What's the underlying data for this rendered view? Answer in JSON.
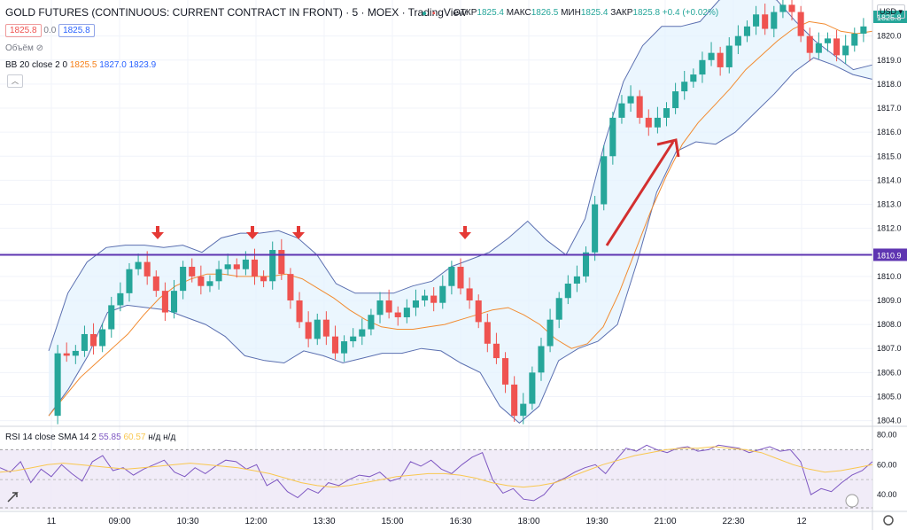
{
  "header": {
    "title": "GOLD FUTURES (CONTINUOUS: CURRENT CONTRACT IN FRONT) · 5 · MOEX · TradingView",
    "open_label": "ОТКР",
    "open": "1825.4",
    "high_label": "МАКС",
    "high": "1826.5",
    "low_label": "МИН",
    "low": "1825.4",
    "close_label": "ЗАКР",
    "close": "1825.8",
    "change": "+0.4 (+0.02%)",
    "bid": "1825.8",
    "spread": "0.0",
    "ask": "1825.8",
    "volume_label": "Объём",
    "bb_label": "BB 20 close 2 0",
    "bb_basis": "1825.5",
    "bb_upper": "1827.0",
    "bb_lower": "1823.9",
    "rsi_label": "RSI 14 close SMA 14 2",
    "rsi_value": "55.85",
    "rsi_sma": "60.57",
    "rsi_na": "н/д н/д",
    "currency": "USD"
  },
  "chart_data": [
    {
      "type": "candlestick",
      "title": "GOLD FUTURES (CONTINUOUS: CURRENT CONTRACT IN FRONT)",
      "timeframe": "5",
      "exchange": "MOEX",
      "price_axis_ticks": [
        "1820.0",
        "1819.0",
        "1818.0",
        "1817.0",
        "1816.0",
        "1815.0",
        "1814.0",
        "1813.0",
        "1812.0",
        "1811.0",
        "1810.9",
        "1810.0",
        "1809.0",
        "1808.0",
        "1807.0",
        "1806.0",
        "1805.0",
        "1804.0"
      ],
      "time_axis_ticks": [
        "11",
        "09:00",
        "10:30",
        "12:00",
        "13:30",
        "15:00",
        "16:30",
        "18:00",
        "19:30",
        "21:00",
        "22:30",
        "12"
      ],
      "ylim": [
        1803.8,
        1821.5
      ],
      "close_path": [
        1804.2,
        1806.8,
        1806.7,
        1806.9,
        1807.6,
        1807.1,
        1807.8,
        1808.8,
        1809.3,
        1810.3,
        1810.6,
        1810.0,
        1809.4,
        1808.5,
        1809.4,
        1810.4,
        1810.0,
        1809.6,
        1809.8,
        1810.3,
        1810.5,
        1810.3,
        1810.7,
        1810.0,
        1809.8,
        1811.1,
        1810.1,
        1809.0,
        1808.1,
        1807.4,
        1808.2,
        1807.5,
        1806.8,
        1807.3,
        1807.5,
        1807.8,
        1808.4,
        1809.0,
        1808.5,
        1808.3,
        1808.7,
        1809.0,
        1809.2,
        1808.9,
        1809.6,
        1810.4,
        1809.5,
        1809.0,
        1808.1,
        1807.2,
        1806.6,
        1805.5,
        1804.2,
        1804.7,
        1806.0,
        1807.1,
        1808.2,
        1809.1,
        1809.7,
        1810.0,
        1811.0,
        1813.0,
        1815.0,
        1816.6,
        1817.2,
        1817.5,
        1816.6,
        1816.2,
        1816.6,
        1817.0,
        1817.7,
        1818.1,
        1818.4,
        1819.0,
        1819.3,
        1818.7,
        1819.6,
        1820.0,
        1820.4,
        1820.9,
        1820.3,
        1821.0,
        1821.3,
        1821.0,
        1820.0,
        1819.3,
        1819.7,
        1819.9,
        1819.2,
        1819.6,
        1820.1,
        1820.4
      ]
    },
    {
      "type": "line",
      "title": "BB 20 close 2 0",
      "series": [
        {
          "name": "basis",
          "color": "#f28b30",
          "values": [
            1804.2,
            1805.0,
            1805.8,
            1806.4,
            1807.0,
            1807.6,
            1808.4,
            1809.1,
            1809.6,
            1809.9,
            1810.1,
            1810.1,
            1810.0,
            1810.0,
            1810.0,
            1810.1,
            1809.9,
            1809.5,
            1809.1,
            1808.6,
            1808.2,
            1807.9,
            1807.8,
            1807.8,
            1807.9,
            1808.0,
            1808.2,
            1808.4,
            1808.6,
            1808.7,
            1808.4,
            1808.0,
            1807.4,
            1807.0,
            1807.2,
            1807.9,
            1809.3,
            1811.0,
            1812.7,
            1814.2,
            1815.5,
            1816.4,
            1817.1,
            1817.8,
            1818.6,
            1819.2,
            1819.8,
            1820.3,
            1820.6,
            1820.5,
            1820.2,
            1820.1,
            1820.2
          ]
        },
        {
          "name": "upper",
          "color": "#5b6fb0",
          "values": [
            1806.9,
            1809.3,
            1810.6,
            1811.2,
            1811.3,
            1811.3,
            1811.2,
            1811.3,
            1811.0,
            1811.6,
            1811.8,
            1811.8,
            1811.9,
            1811.6,
            1810.9,
            1809.7,
            1809.3,
            1809.3,
            1809.3,
            1809.6,
            1809.8,
            1810.4,
            1810.7,
            1811.0,
            1811.6,
            1812.3,
            1811.5,
            1810.9,
            1812.4,
            1815.5,
            1818.1,
            1819.6,
            1820.4,
            1820.4,
            1820.6,
            1821.5,
            1821.8,
            1821.8,
            1821.5,
            1820.6,
            1819.8,
            1819.2,
            1818.6,
            1818.8
          ]
        },
        {
          "name": "lower",
          "color": "#5b6fb0",
          "values": [
            1804.2,
            1805.3,
            1806.7,
            1808.5,
            1808.8,
            1808.7,
            1808.6,
            1808.3,
            1808.0,
            1807.5,
            1806.7,
            1806.5,
            1806.4,
            1806.9,
            1806.7,
            1806.4,
            1806.6,
            1806.8,
            1806.8,
            1807.0,
            1806.9,
            1806.4,
            1806.0,
            1804.6,
            1803.9,
            1804.6,
            1806.5,
            1807.0,
            1807.3,
            1808.0,
            1810.6,
            1813.5,
            1815.2,
            1815.6,
            1815.5,
            1816.0,
            1816.8,
            1817.6,
            1818.5,
            1819.1,
            1818.8,
            1818.4,
            1818.2
          ]
        }
      ]
    },
    {
      "type": "line",
      "title": "RSI 14 close SMA 14 2",
      "y_ticks": [
        "80.00",
        "60.00",
        "40.00"
      ],
      "ylim": [
        30,
        85
      ],
      "series": [
        {
          "name": "RSI",
          "color": "#7e57c2",
          "values": [
            58,
            55,
            62,
            48,
            57,
            52,
            60,
            54,
            49,
            62,
            66,
            56,
            58,
            53,
            57,
            60,
            63,
            55,
            52,
            58,
            54,
            59,
            63,
            62,
            57,
            60,
            46,
            50,
            42,
            38,
            44,
            41,
            48,
            46,
            50,
            53,
            52,
            55,
            49,
            51,
            62,
            59,
            63,
            57,
            54,
            60,
            65,
            68,
            50,
            41,
            44,
            37,
            36,
            40,
            48,
            51,
            55,
            58,
            60,
            54,
            63,
            71,
            69,
            73,
            70,
            68,
            71,
            72,
            69,
            70,
            73,
            72,
            71,
            68,
            70,
            72,
            69,
            70,
            62,
            40,
            44,
            42,
            48,
            53,
            56,
            62
          ]
        },
        {
          "name": "SMA",
          "color": "#f9c74f",
          "values": [
            55,
            56,
            58,
            60,
            61,
            60,
            59,
            58,
            57,
            58,
            59,
            60,
            61,
            60,
            59,
            58,
            56,
            54,
            51,
            48,
            46,
            45,
            46,
            48,
            50,
            52,
            53,
            54,
            54,
            53,
            51,
            48,
            46,
            45,
            46,
            48,
            52,
            56,
            60,
            63,
            66,
            68,
            70,
            71,
            71,
            72,
            71,
            70,
            68,
            64,
            60,
            57,
            55,
            56,
            58,
            60
          ]
        }
      ]
    }
  ],
  "annotations": {
    "resistance_level": "1810.9",
    "arrows_down_count": 4,
    "trend_arrow": "up"
  }
}
